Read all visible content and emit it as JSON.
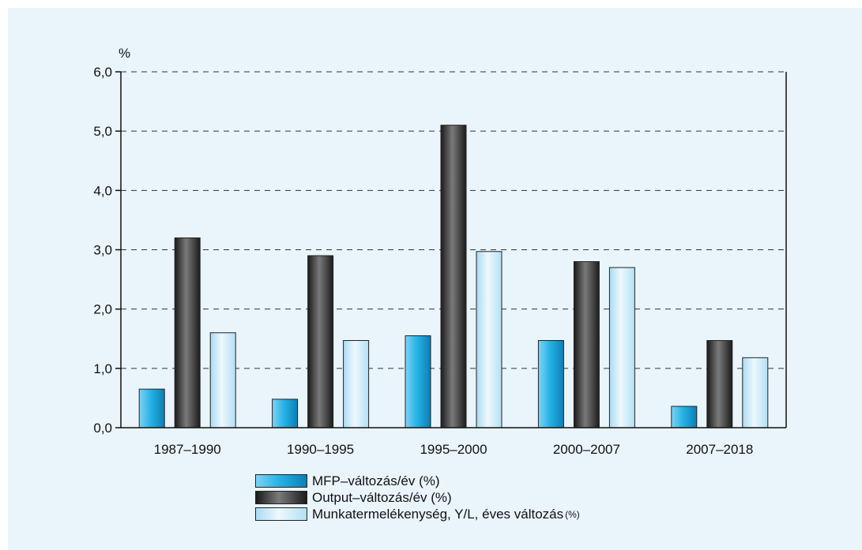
{
  "chart_data": {
    "type": "bar",
    "unit_label": "%",
    "categories": [
      "1987–1990",
      "1990–1995",
      "1995–2000",
      "2000–2007",
      "2007–2018"
    ],
    "series": [
      {
        "name": "MFP–változás/év (%)",
        "values": [
          0.65,
          0.48,
          1.55,
          1.47,
          0.36
        ]
      },
      {
        "name": "Output–változás/év (%)",
        "values": [
          3.2,
          2.9,
          5.1,
          2.8,
          1.47
        ]
      },
      {
        "name": "Munkatermelékenység, Y/L, éves változás",
        "name_suffix": "(%)",
        "values": [
          1.6,
          1.47,
          2.97,
          2.7,
          1.18
        ]
      }
    ],
    "y_ticks": [
      "0,0",
      "1,0",
      "2,0",
      "3,0",
      "4,0",
      "5,0",
      "6,0"
    ],
    "ylim": [
      0,
      6
    ],
    "grid": true,
    "legend_position": "bottom"
  },
  "colors": {
    "background": "#eaf4fb",
    "grid": "#333333",
    "series_mfp": "#1ea6dc",
    "series_output": "#3b3b3b",
    "series_labor": "#c9e8f7"
  }
}
